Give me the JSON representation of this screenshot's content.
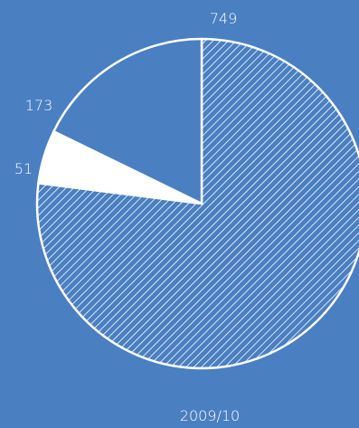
{
  "chart_data": {
    "type": "pie",
    "xlabel": "2009/10",
    "slices": [
      {
        "label": "749",
        "value": 749,
        "fill": "hatched-white"
      },
      {
        "label": "51",
        "value": 51,
        "fill": "solid-white"
      },
      {
        "label": "173",
        "value": 173,
        "fill": "background-blue"
      }
    ],
    "colors": {
      "background": "#4a7fc1",
      "foreground": "#ffffff"
    }
  }
}
